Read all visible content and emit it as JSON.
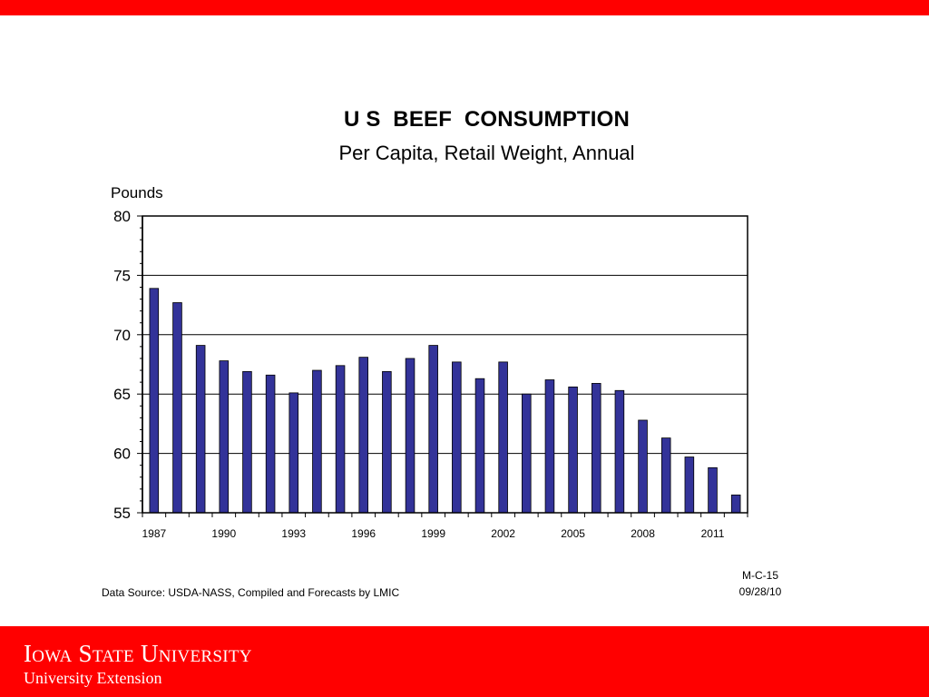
{
  "colors": {
    "brand_red": "#ff0000",
    "bar_fill": "#333399",
    "bar_stroke": "#000000",
    "grid": "#000000"
  },
  "chart_data": {
    "type": "bar",
    "title": "U S  BEEF  CONSUMPTION",
    "subtitle": "Per Capita, Retail Weight, Annual",
    "ylabel": "Pounds",
    "xlabel": "",
    "ylim": [
      55,
      80
    ],
    "yticks": [
      55,
      60,
      65,
      70,
      75,
      80
    ],
    "grid": true,
    "legend": "none",
    "categories": [
      "1987",
      "1988",
      "1989",
      "1990",
      "1991",
      "1992",
      "1993",
      "1994",
      "1995",
      "1996",
      "1997",
      "1998",
      "1999",
      "2000",
      "2001",
      "2002",
      "2003",
      "2004",
      "2005",
      "2006",
      "2007",
      "2008",
      "2009",
      "2010",
      "2011",
      "2012"
    ],
    "xtick_labels": [
      "1987",
      "1990",
      "1993",
      "1996",
      "1999",
      "2002",
      "2005",
      "2008",
      "2011"
    ],
    "values": [
      73.9,
      72.7,
      69.1,
      67.8,
      66.9,
      66.6,
      65.1,
      67.0,
      67.4,
      68.1,
      66.9,
      68.0,
      69.1,
      67.7,
      66.3,
      67.7,
      65.0,
      66.2,
      65.6,
      65.9,
      65.3,
      62.8,
      61.3,
      59.7,
      58.8,
      56.5
    ]
  },
  "footer": {
    "source": "Data Source:  USDA-NASS, Compiled and Forecasts by LMIC",
    "code": "M-C-15",
    "date": "09/28/10",
    "brand_name": "Iowa State University",
    "brand_sub": "University Extension"
  }
}
